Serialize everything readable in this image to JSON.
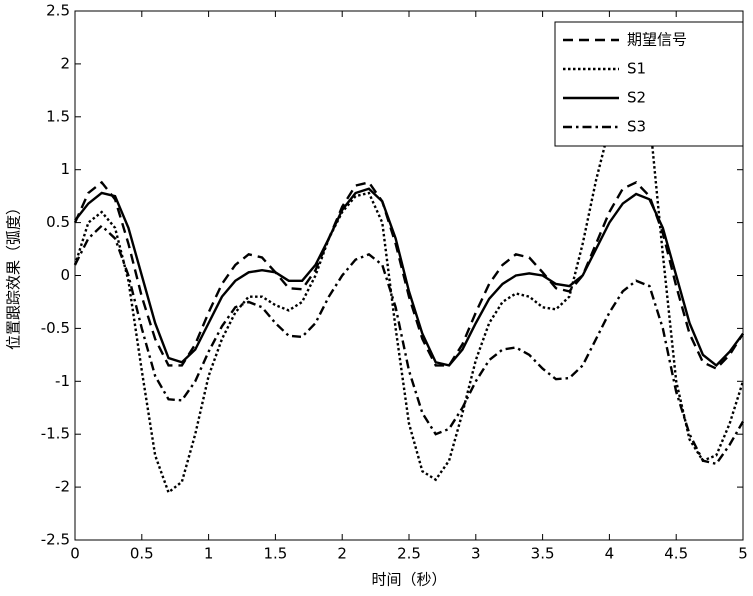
{
  "chart_data": {
    "type": "line",
    "xlabel": "时间（秒）",
    "ylabel": "位置跟踪效果（弧度）",
    "x": [
      0,
      0.1,
      0.2,
      0.3,
      0.4,
      0.5,
      0.6,
      0.7,
      0.8,
      0.9,
      1,
      1.1,
      1.2,
      1.3,
      1.4,
      1.5,
      1.6,
      1.7,
      1.8,
      1.9,
      2,
      2.1,
      2.2,
      2.3,
      2.4,
      2.5,
      2.6,
      2.7,
      2.8,
      2.9,
      3,
      3.1,
      3.2,
      3.3,
      3.4,
      3.5,
      3.6,
      3.7,
      3.8,
      3.9,
      4,
      4.1,
      4.2,
      4.3,
      4.4,
      4.5,
      4.6,
      4.7,
      4.8,
      4.9,
      5
    ],
    "series": [
      {
        "name": "期望信号",
        "color": "#000000",
        "dash": "dashed",
        "values": [
          0.5,
          0.78,
          0.88,
          0.72,
          0.3,
          -0.2,
          -0.6,
          -0.85,
          -0.85,
          -0.65,
          -0.35,
          -0.08,
          0.1,
          0.2,
          0.17,
          0.03,
          -0.12,
          -0.13,
          0.05,
          0.35,
          0.65,
          0.85,
          0.88,
          0.7,
          0.3,
          -0.2,
          -0.6,
          -0.85,
          -0.85,
          -0.65,
          -0.35,
          -0.08,
          0.1,
          0.2,
          0.17,
          0.03,
          -0.12,
          -0.15,
          0,
          0.3,
          0.6,
          0.82,
          0.88,
          0.75,
          0.4,
          -0.1,
          -0.55,
          -0.82,
          -0.88,
          -0.75,
          -0.55
        ]
      },
      {
        "name": "S1",
        "color": "#000000",
        "dash": "dotted",
        "values": [
          0.1,
          0.5,
          0.6,
          0.45,
          -0.05,
          -0.9,
          -1.7,
          -2.05,
          -1.95,
          -1.5,
          -0.95,
          -0.6,
          -0.35,
          -0.2,
          -0.2,
          -0.28,
          -0.33,
          -0.25,
          0,
          0.35,
          0.6,
          0.75,
          0.78,
          0.5,
          -0.5,
          -1.4,
          -1.85,
          -1.93,
          -1.75,
          -1.3,
          -0.8,
          -0.45,
          -0.25,
          -0.17,
          -0.2,
          -0.3,
          -0.32,
          -0.2,
          0.3,
          0.9,
          1.4,
          1.95,
          2.2,
          1.5,
          0.2,
          -1,
          -1.55,
          -1.75,
          -1.7,
          -1.4,
          -1
        ]
      },
      {
        "name": "S2",
        "color": "#000000",
        "dash": "solid",
        "values": [
          0.52,
          0.68,
          0.78,
          0.75,
          0.45,
          0,
          -0.45,
          -0.78,
          -0.82,
          -0.7,
          -0.45,
          -0.2,
          -0.05,
          0.03,
          0.05,
          0.03,
          -0.05,
          -0.05,
          0.1,
          0.35,
          0.62,
          0.78,
          0.82,
          0.7,
          0.35,
          -0.15,
          -0.55,
          -0.82,
          -0.85,
          -0.7,
          -0.45,
          -0.22,
          -0.08,
          0,
          0.02,
          0,
          -0.08,
          -0.1,
          0,
          0.25,
          0.5,
          0.68,
          0.77,
          0.72,
          0.45,
          0,
          -0.45,
          -0.75,
          -0.85,
          -0.72,
          -0.55
        ]
      },
      {
        "name": "S3",
        "color": "#000000",
        "dash": "dashdot",
        "values": [
          0.1,
          0.35,
          0.47,
          0.35,
          0,
          -0.5,
          -0.95,
          -1.17,
          -1.18,
          -1,
          -0.72,
          -0.48,
          -0.3,
          -0.25,
          -0.3,
          -0.45,
          -0.57,
          -0.58,
          -0.45,
          -0.2,
          0,
          0.15,
          0.2,
          0.1,
          -0.3,
          -0.9,
          -1.3,
          -1.5,
          -1.45,
          -1.25,
          -1,
          -0.8,
          -0.7,
          -0.68,
          -0.75,
          -0.88,
          -0.98,
          -0.97,
          -0.85,
          -0.6,
          -0.35,
          -0.15,
          -0.05,
          -0.1,
          -0.5,
          -1.1,
          -1.5,
          -1.75,
          -1.78,
          -1.6,
          -1.38
        ]
      }
    ],
    "xlim": [
      0,
      5
    ],
    "xticks": [
      0,
      0.5,
      1,
      1.5,
      2,
      2.5,
      3,
      3.5,
      4,
      4.5,
      5
    ],
    "ylim": [
      -2.5,
      2.5
    ],
    "yticks": [
      -2.5,
      -2,
      -1.5,
      -1,
      -0.5,
      0,
      0.5,
      1,
      1.5,
      2,
      2.5
    ],
    "grid": false,
    "legend": "upper right"
  }
}
